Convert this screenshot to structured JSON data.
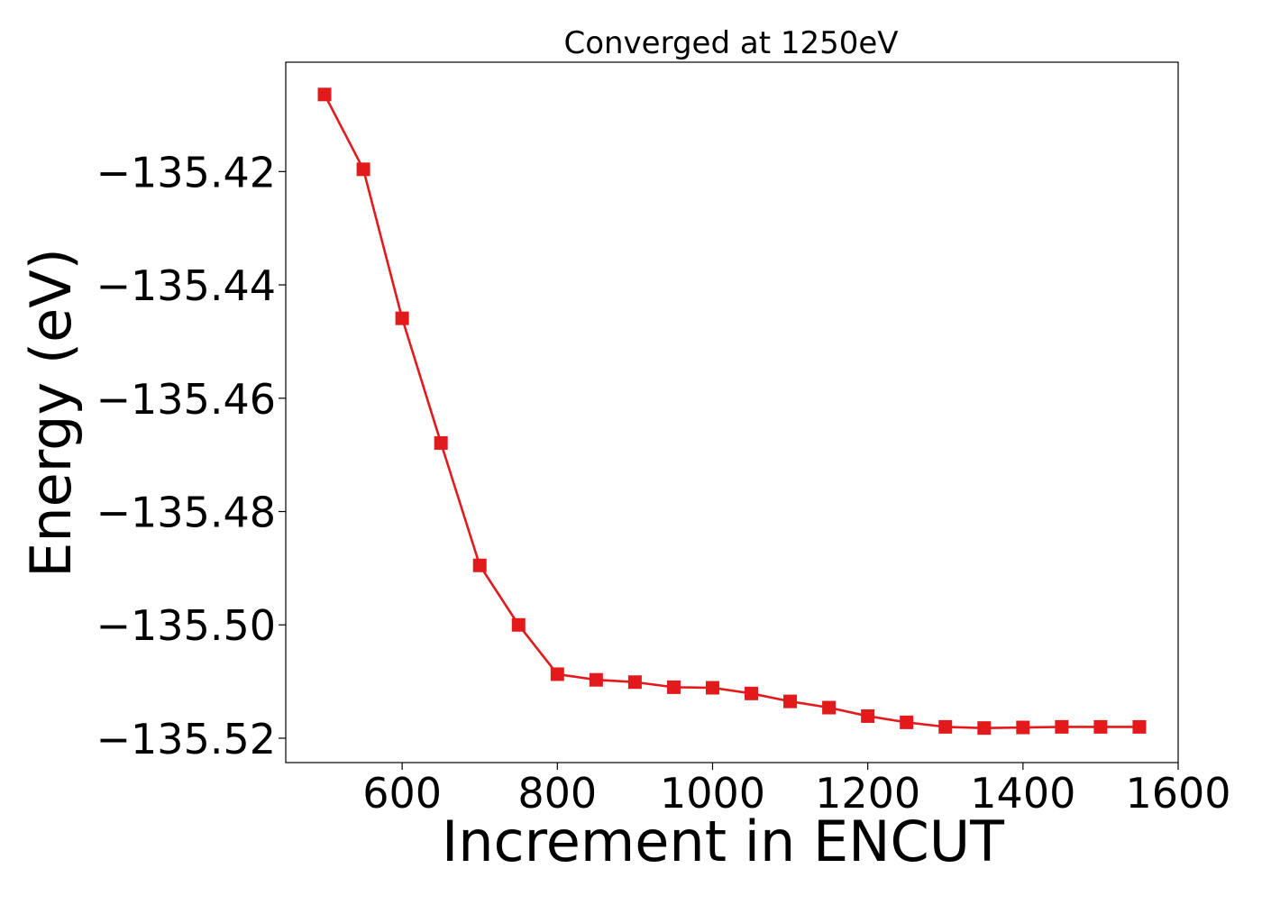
{
  "chart_data": {
    "type": "line",
    "title": "Converged at 1250eV",
    "xlabel": "Increment in ENCUT",
    "ylabel": "Energy (eV)",
    "xlim": [
      450,
      1600
    ],
    "ylim": [
      -135.5243,
      -135.4007
    ],
    "x_ticks": [
      600,
      800,
      1000,
      1200,
      1400,
      1600
    ],
    "x_tick_labels": [
      "600",
      "800",
      "1000",
      "1200",
      "1400",
      "1600"
    ],
    "y_ticks": [
      -135.42,
      -135.44,
      -135.46,
      -135.48,
      -135.5,
      -135.52
    ],
    "y_tick_labels": [
      "−135.42",
      "−135.44",
      "−135.46",
      "−135.48",
      "−135.50",
      "−135.52"
    ],
    "grid": false,
    "legend": "none",
    "series": [
      {
        "color": "#e31a1c",
        "marker": "square",
        "x": [
          500,
          550,
          600,
          650,
          700,
          750,
          800,
          850,
          900,
          950,
          1000,
          1050,
          1100,
          1150,
          1200,
          1250,
          1300,
          1350,
          1400,
          1450,
          1500,
          1550
        ],
        "y": [
          -135.4064,
          -135.4196,
          -135.4459,
          -135.4679,
          -135.4895,
          -135.5,
          -135.5087,
          -135.5097,
          -135.5101,
          -135.511,
          -135.5111,
          -135.5121,
          -135.5135,
          -135.5146,
          -135.5161,
          -135.5172,
          -135.518,
          -135.5182,
          -135.5181,
          -135.518,
          -135.518,
          -135.518
        ]
      }
    ]
  }
}
